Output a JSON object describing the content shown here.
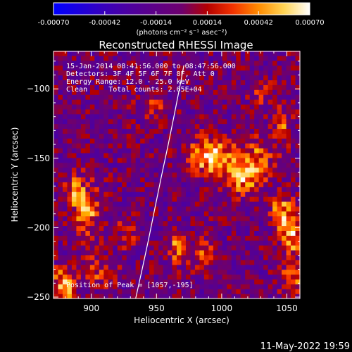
{
  "chart_data": {
    "type": "heatmap",
    "title": "Reconstructed RHESSI Image",
    "xlabel": "Heliocentric X (arcsec)",
    "ylabel": "Heliocentric Y (arcsec)",
    "xlim": [
      871,
      1060
    ],
    "ylim": [
      -251,
      -73
    ],
    "xticks": [
      900,
      950,
      1000,
      1050
    ],
    "yticks": [
      -100,
      -150,
      -200,
      -250
    ],
    "colorbar": {
      "range": [
        -0.0007,
        0.0007
      ],
      "tick_values": [
        -0.0007,
        -0.00042,
        -0.00014,
        0.00014,
        0.00042,
        0.0007
      ],
      "tick_labels": [
        "-0.00070",
        "-0.00042",
        "-0.00014",
        "0.00014",
        "0.00042",
        "0.00070"
      ],
      "unit": "(photons cm⁻² s⁻¹ asec⁻²)",
      "colormap": "blue-purple-red-orange-yellow-white"
    },
    "annotations": [
      "15-Jan-2014 08:41:56.000 to 08:47:56.000",
      "Detectors: 3F 4F 5F 6F 7F 8F, Att 0",
      "Energy Range: 12.0 - 25.0 keV",
      "Clean     Total counts: 2.65E+04"
    ],
    "peak_label": "Position of Peak = [1057,-195]",
    "limb_curve": {
      "x": [
        934,
        939,
        944,
        949,
        954,
        959,
        964,
        969,
        971
      ],
      "y": [
        -251,
        -230,
        -208,
        -185,
        -162,
        -140,
        -117,
        -93,
        -83
      ]
    },
    "sources": [
      {
        "x": 990,
        "y": -150,
        "peak": 0.00064,
        "sx": 12,
        "sy": 9
      },
      {
        "x": 1012,
        "y": -165,
        "peak": 0.0005,
        "sx": 10,
        "sy": 9
      },
      {
        "x": 1025,
        "y": -150,
        "peak": 0.00036,
        "sx": 9,
        "sy": 12
      },
      {
        "x": 1043,
        "y": -190,
        "peak": 0.00046,
        "sx": 5,
        "sy": 10
      },
      {
        "x": 1052,
        "y": -205,
        "peak": 0.00058,
        "sx": 5,
        "sy": 12
      },
      {
        "x": 1052,
        "y": -240,
        "peak": 0.00042,
        "sx": 6,
        "sy": 8
      },
      {
        "x": 1045,
        "y": -130,
        "peak": 0.00032,
        "sx": 5,
        "sy": 10
      },
      {
        "x": 1030,
        "y": -105,
        "peak": 0.00028,
        "sx": 6,
        "sy": 6
      },
      {
        "x": 895,
        "y": -190,
        "peak": 0.0005,
        "sx": 7,
        "sy": 13
      },
      {
        "x": 885,
        "y": -175,
        "peak": 0.0004,
        "sx": 6,
        "sy": 8
      },
      {
        "x": 878,
        "y": -242,
        "peak": 0.0006,
        "sx": 6,
        "sy": 9
      },
      {
        "x": 905,
        "y": -232,
        "peak": 0.0003,
        "sx": 8,
        "sy": 8
      },
      {
        "x": 965,
        "y": -215,
        "peak": 0.00046,
        "sx": 5,
        "sy": 9
      },
      {
        "x": 985,
        "y": -222,
        "peak": 0.00034,
        "sx": 6,
        "sy": 8
      },
      {
        "x": 945,
        "y": -115,
        "peak": 0.00026,
        "sx": 7,
        "sy": 6
      },
      {
        "x": 925,
        "y": -205,
        "peak": 0.00024,
        "sx": 6,
        "sy": 7
      }
    ],
    "background_level": -8e-05,
    "noise_level": 0.00022
  },
  "footer": {
    "timestamp": "11-May-2022 19:59"
  }
}
